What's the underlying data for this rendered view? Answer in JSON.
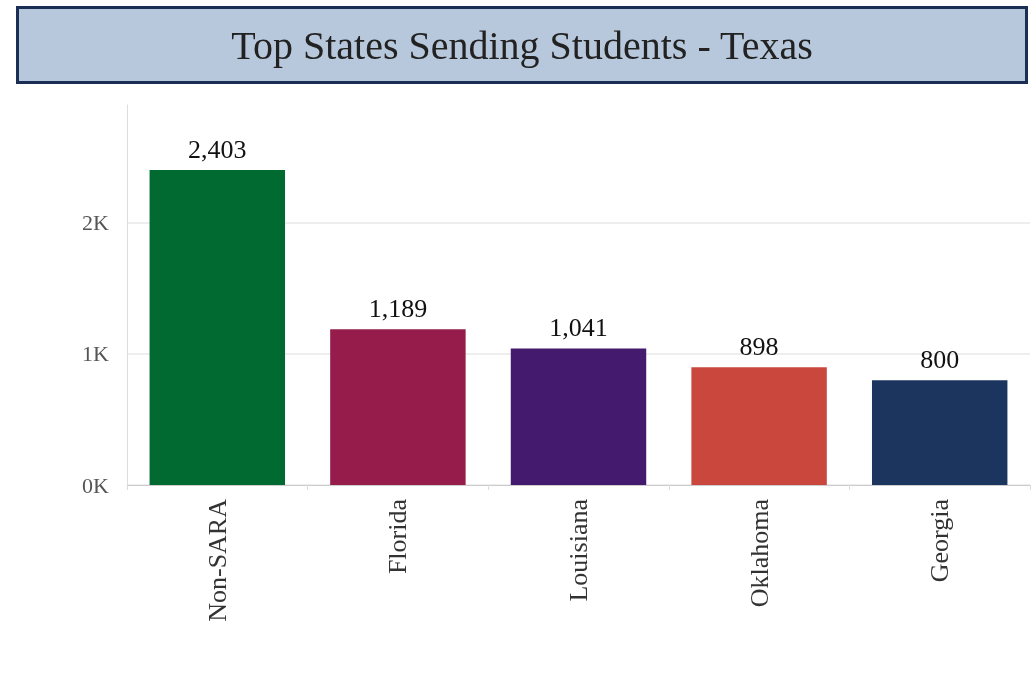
{
  "chart_data": {
    "type": "bar",
    "title": "Top States Sending Students - Texas",
    "categories": [
      "Non-SARA",
      "Florida",
      "Louisiana",
      "Oklahoma",
      "Georgia"
    ],
    "values": [
      2403,
      1189,
      1041,
      898,
      800
    ],
    "colors": [
      "#006a31",
      "#951c4b",
      "#441a6e",
      "#c9473d",
      "#1b355e"
    ],
    "value_labels": [
      "2,403",
      "1,189",
      "1,041",
      "898",
      "800"
    ],
    "ylim": [
      0,
      2900
    ],
    "yticks": [
      {
        "value": 0,
        "label": "0K"
      },
      {
        "value": 1000,
        "label": "1K"
      },
      {
        "value": 2000,
        "label": "2K"
      }
    ],
    "grid": "y"
  }
}
